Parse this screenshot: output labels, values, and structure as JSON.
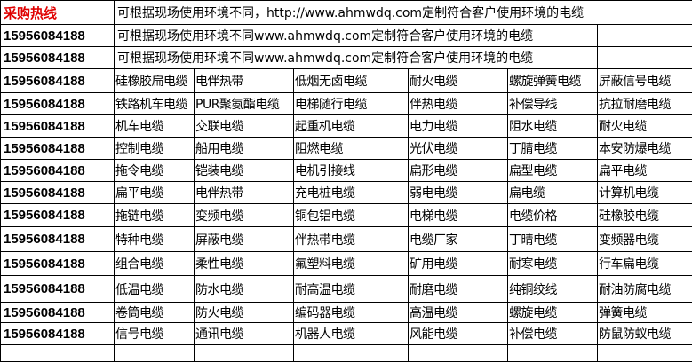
{
  "header": {
    "label": "采购热线",
    "text": "可根据现场使用环境不同，http://www.ahmwdq.com定制符合客户使用环境的电缆",
    "label_color": "#e00000"
  },
  "intro_rows": [
    {
      "phone": "15956084188",
      "text": "可根据现场使用环境不同www.ahmwdq.com定制符合客户使用环境的电缆"
    },
    {
      "phone": "15956084188",
      "text": "可根据现场使用环境不同www.ahmwdq.com定制符合客户使用环境的电缆"
    }
  ],
  "rows": [
    {
      "phone": "15956084188",
      "cells": [
        "硅橡胶扁电缆",
        "电伴热带",
        "低烟无卤电缆",
        "耐火电缆",
        "螺旋弹簧电缆",
        "屏蔽信号电缆"
      ]
    },
    {
      "phone": "15956084188",
      "cells": [
        "铁路机车电缆",
        "PUR聚氨酯电缆",
        "电梯随行电缆",
        "伴热电缆",
        "补偿导线",
        "抗拉耐磨电缆"
      ]
    },
    {
      "phone": "15956084188",
      "cells": [
        "机车电缆",
        "交联电缆",
        "起重机电缆",
        "电力电缆",
        "阻水电缆",
        "耐火电缆"
      ]
    },
    {
      "phone": "15956084188",
      "cells": [
        "控制电缆",
        "船用电缆",
        "阻燃电缆",
        "光伏电缆",
        "丁腈电缆",
        "本安防爆电缆"
      ]
    },
    {
      "phone": "15956084188",
      "cells": [
        "拖令电缆",
        "铠装电缆",
        "电机引接线",
        "扁形电缆",
        "扁型电缆",
        "扁平电缆"
      ]
    },
    {
      "phone": "15956084188",
      "cells": [
        "扁平电缆",
        "电伴热带",
        "充电桩电缆",
        "弱电电缆",
        "扁电缆",
        "计算机电缆"
      ]
    },
    {
      "phone": "15956084188",
      "cells": [
        "拖链电缆",
        "变频电缆",
        "铜包铝电缆",
        "电梯电缆",
        "电缆价格",
        "硅橡胶电缆"
      ]
    },
    {
      "phone": "15956084188",
      "cells": [
        "特种电缆",
        "屏蔽电缆",
        "伴热带电缆",
        "电缆厂家",
        "丁晴电缆",
        "变频器电缆"
      ]
    },
    {
      "phone": "15956084188",
      "cells": [
        "组合电缆",
        "柔性电缆",
        "氟塑料电缆",
        "矿用电缆",
        "耐寒电缆",
        "行车扁电缆"
      ]
    },
    {
      "phone": "15956084188",
      "cells": [
        "低温电缆",
        "防水电缆",
        "耐高温电缆",
        "耐磨电缆",
        "纯铜绞线",
        "耐油防腐电缆"
      ]
    },
    {
      "phone": "15956084188",
      "cells": [
        "卷筒电缆",
        "防火电缆",
        "编码器电缆",
        "高温电缆",
        "螺旋电缆",
        "弹簧电缆"
      ]
    },
    {
      "phone": "15956084188",
      "cells": [
        "信号电缆",
        "通讯电缆",
        "机器人电缆",
        "风能电缆",
        "补偿电缆",
        "防鼠防蚁电缆"
      ]
    }
  ]
}
